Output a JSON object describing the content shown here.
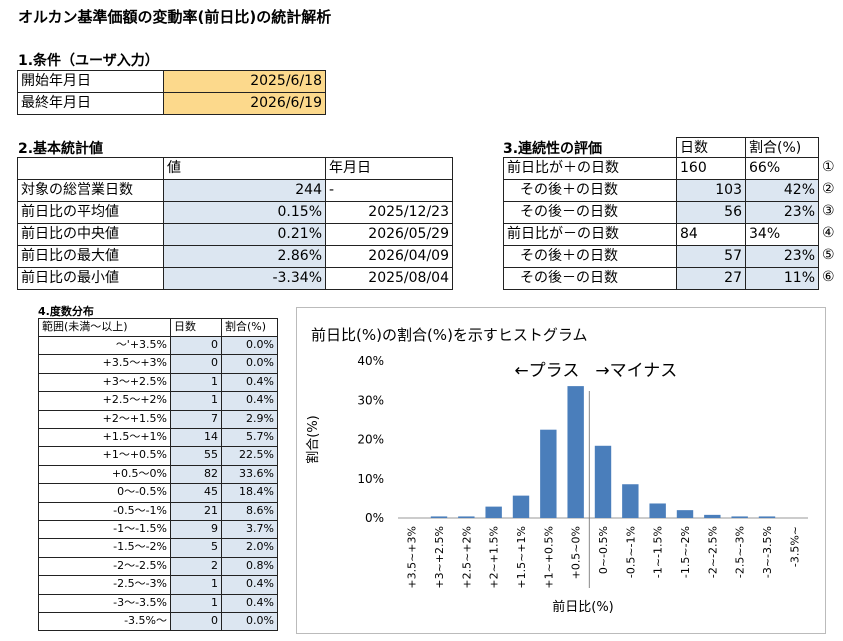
{
  "title": "オルカン基準価額の変動率(前日比)の統計解析",
  "conditions": {
    "heading": "1.条件（ユーザ入力）",
    "rows": [
      [
        "開始年月日",
        "2025/6/18"
      ],
      [
        "最終年月日",
        "2026/6/19"
      ]
    ]
  },
  "basic_stats": {
    "heading": "2.基本統計値",
    "headers": [
      "値",
      "年月日"
    ],
    "rows": [
      [
        "対象の総営業日数",
        "244",
        "-"
      ],
      [
        "前日比の平均値",
        "0.15%",
        "2025/12/23"
      ],
      [
        "前日比の中央値",
        "0.21%",
        "2026/05/29"
      ],
      [
        "前日比の最大値",
        "2.86%",
        "2026/04/09"
      ],
      [
        "前日比の最小値",
        "-3.34%",
        "2025/08/04"
      ]
    ]
  },
  "continuity": {
    "heading": "3.連続性の評価",
    "headers": [
      "日数",
      "割合(%)"
    ],
    "rows": [
      [
        "前日比が＋の日数",
        "160",
        "66%",
        "①"
      ],
      [
        "その後＋の日数",
        "103",
        "42%",
        "②"
      ],
      [
        "その後－の日数",
        "56",
        "23%",
        "③"
      ],
      [
        "前日比が－の日数",
        "84",
        "34%",
        "④"
      ],
      [
        "その後＋の日数",
        "57",
        "23%",
        "⑤"
      ],
      [
        "その後－の日数",
        "27",
        "11%",
        "⑥"
      ]
    ]
  },
  "distribution": {
    "heading": "4.度数分布",
    "headers": [
      "範囲(未満～以上)",
      "日数",
      "割合(%)"
    ],
    "rows": [
      [
        "～'+3.5%",
        "0",
        "0.0%"
      ],
      [
        "+3.5～+3%",
        "0",
        "0.0%"
      ],
      [
        "+3～+2.5%",
        "1",
        "0.4%"
      ],
      [
        "+2.5～+2%",
        "1",
        "0.4%"
      ],
      [
        "+2～+1.5%",
        "7",
        "2.9%"
      ],
      [
        "+1.5～+1%",
        "14",
        "5.7%"
      ],
      [
        "+1～+0.5%",
        "55",
        "22.5%"
      ],
      [
        "+0.5～0%",
        "82",
        "33.6%"
      ],
      [
        "0～-0.5%",
        "45",
        "18.4%"
      ],
      [
        "-0.5～-1%",
        "21",
        "8.6%"
      ],
      [
        "-1～-1.5%",
        "9",
        "3.7%"
      ],
      [
        "-1.5～-2%",
        "5",
        "2.0%"
      ],
      [
        "-2～-2.5%",
        "2",
        "0.8%"
      ],
      [
        "-2.5～-3%",
        "1",
        "0.4%"
      ],
      [
        "-3～-3.5%",
        "1",
        "0.4%"
      ],
      [
        "-3.5%～",
        "0",
        "0.0%"
      ]
    ]
  },
  "chart_data": {
    "type": "bar",
    "title": "前日比(%)の割合(%)を示すヒストグラム",
    "x_label": "前日比(%)",
    "y_label": "割合(%)",
    "annotations": [
      "←プラス",
      "→マイナス"
    ],
    "categories": [
      "+3.5~+3%",
      "+3~+2.5%",
      "+2.5~+2%",
      "+2~+1.5%",
      "+1.5~+1%",
      "+1~+0.5%",
      "+0.5~0%",
      "0~-0.5%",
      "-0.5~-1%",
      "-1~-1.5%",
      "-1.5~-2%",
      "-2~-2.5%",
      "-2.5~-3%",
      "-3~-3.5%",
      "-3.5%~"
    ],
    "values": [
      0,
      0.4,
      0.4,
      2.9,
      5.7,
      22.5,
      33.6,
      18.4,
      8.6,
      3.7,
      2.0,
      0.8,
      0.4,
      0.4,
      0
    ],
    "color": "#4a7ebb",
    "ylim": [
      0,
      40
    ],
    "yticks": [
      {
        "value": 0,
        "label": "0%"
      },
      {
        "value": 10,
        "label": "10%"
      },
      {
        "value": 20,
        "label": "20%"
      },
      {
        "value": 30,
        "label": "30%"
      },
      {
        "value": 40,
        "label": "40%"
      }
    ]
  }
}
